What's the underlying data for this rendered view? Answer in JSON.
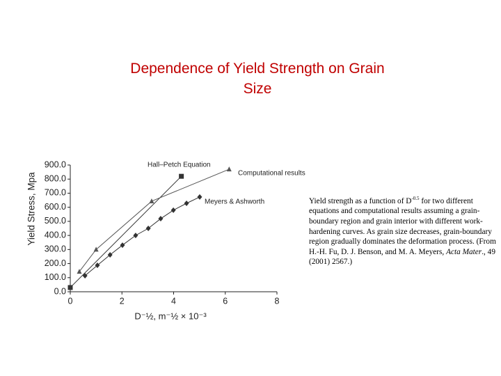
{
  "slide_title": "Dependence of Yield Strength on Grain Size",
  "chart_data": {
    "type": "line",
    "y_label": "Yield Stress, Mpa",
    "x_label": "D⁻½, m⁻½ × 10⁻³",
    "xlim": [
      0,
      8
    ],
    "xticks": [
      0,
      2,
      4,
      6,
      8
    ],
    "ylim": [
      0,
      900
    ],
    "yticks": [
      {
        "value": 0,
        "label": "0.0"
      },
      {
        "value": 100,
        "label": "100.0"
      },
      {
        "value": 200,
        "label": "200.0"
      },
      {
        "value": 300,
        "label": "300.0"
      },
      {
        "value": 400,
        "label": "400.0"
      },
      {
        "value": 500,
        "label": "500.0"
      },
      {
        "value": 600,
        "label": "600.0"
      },
      {
        "value": 700,
        "label": "700.0"
      },
      {
        "value": 800,
        "label": "800.0"
      },
      {
        "value": 900,
        "label": "900.0"
      }
    ],
    "series": [
      {
        "name": "Hall–Petch Equation",
        "color": "#333333",
        "marker": "square",
        "x": [
          0,
          4.3
        ],
        "values": [
          30,
          820
        ]
      },
      {
        "name": "Computational results",
        "color": "#555555",
        "marker": "triangle",
        "x": [
          0.35,
          1.0,
          3.15,
          6.15
        ],
        "values": [
          143,
          300,
          643,
          870
        ]
      },
      {
        "name": "Meyers & Ashworth",
        "color": "#333333",
        "marker": "diamond",
        "x": [
          0.57,
          1.05,
          1.54,
          2.02,
          2.53,
          3.02,
          3.5,
          3.99,
          4.5,
          5.01
        ],
        "values": [
          114,
          188,
          262,
          331,
          400,
          450,
          519,
          579,
          628,
          673
        ]
      }
    ]
  },
  "caption": [
    "Yield strength as a function of D",
    "-0.5",
    " for two different equations and  computational results assuming a grain-boundary region and grain interior with different work-hardening curves. As grain size decreases, grain-boundary region gradually dominates the deformation process. (From H.-H. Fu, D. J. Benson, and M. A. Meyers, ",
    "Acta Mater",
    "., 49 (2001) 2567.)"
  ]
}
